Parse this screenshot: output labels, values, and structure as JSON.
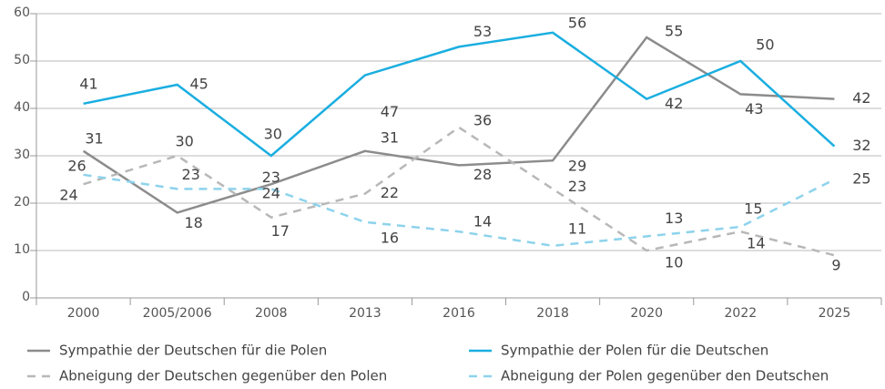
{
  "chart_data": {
    "type": "line",
    "categories": [
      "2000",
      "2005/2006",
      "2008",
      "2013",
      "2016",
      "2018",
      "2020",
      "2022",
      "2025"
    ],
    "series": [
      {
        "name": "Sympathie der Deutschen für die Polen",
        "color": "#8c8c8c",
        "dashed": false,
        "values": [
          31,
          18,
          24,
          31,
          28,
          29,
          55,
          43,
          42
        ]
      },
      {
        "name": "Sympathie der Polen für die Deutschen",
        "color": "#1aaee0",
        "dashed": false,
        "values": [
          41,
          45,
          30,
          47,
          53,
          56,
          42,
          50,
          32
        ]
      },
      {
        "name": "Abneigung der Deutschen gegenüber den Polen",
        "color": "#b8b8b8",
        "dashed": true,
        "values": [
          24,
          30,
          17,
          22,
          36,
          23,
          10,
          14,
          9
        ]
      },
      {
        "name": "Abneigung der Polen gegenüber den Deutschen",
        "color": "#8dd3ec",
        "dashed": true,
        "values": [
          26,
          23,
          23,
          16,
          14,
          11,
          13,
          15,
          25
        ]
      }
    ],
    "ylim": [
      0,
      60
    ],
    "yticks": [
      0,
      10,
      20,
      30,
      40,
      50,
      60
    ],
    "grid": true
  }
}
